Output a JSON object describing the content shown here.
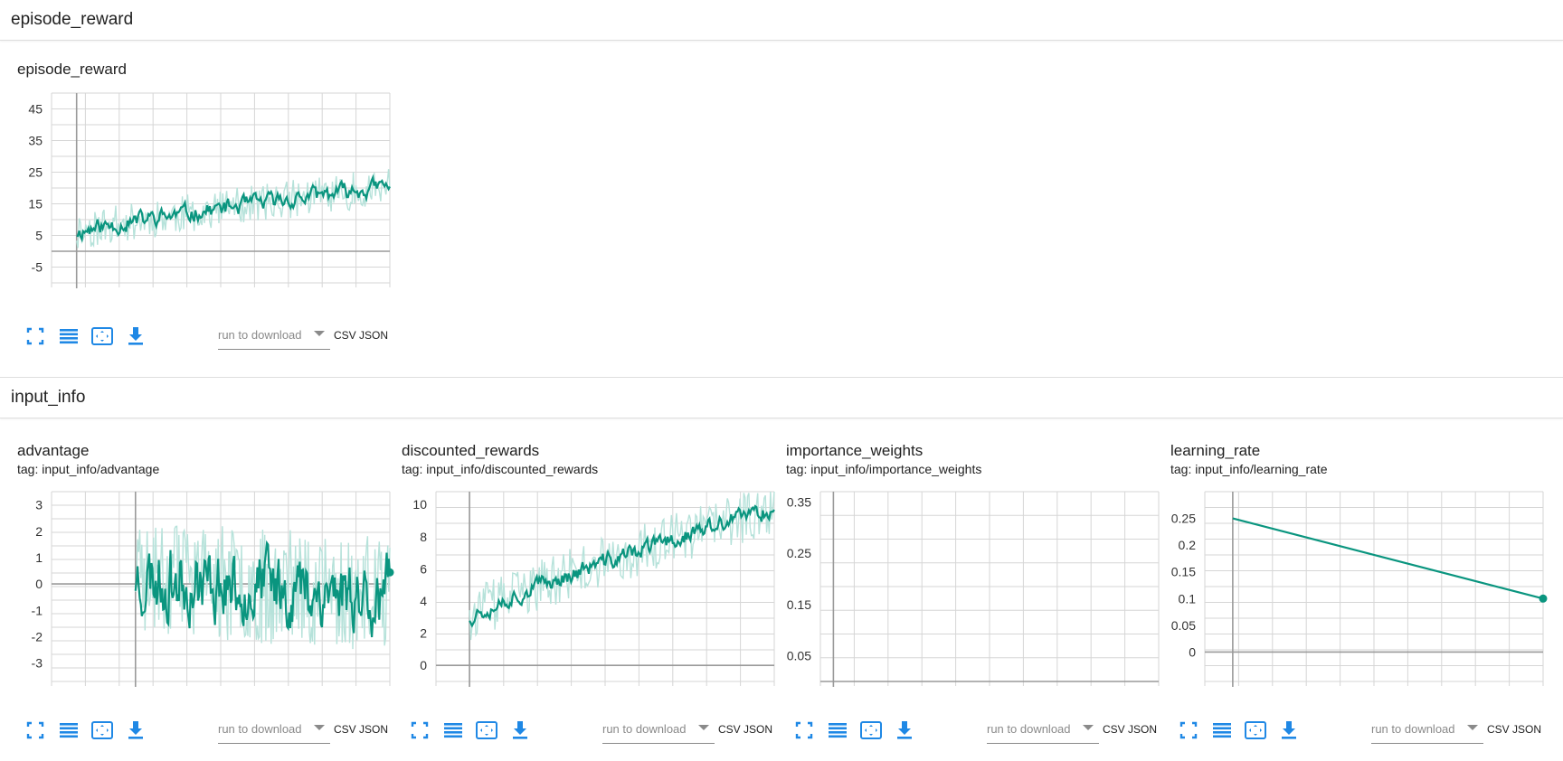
{
  "sections": {
    "episode_reward": "episode_reward",
    "input_info": "input_info"
  },
  "toolbar": {
    "run_placeholder": "run to download",
    "csv_label": "CSV",
    "json_label": "JSON"
  },
  "colors": {
    "series": "#0a957f",
    "series_light": "#b6e2da",
    "grid": "#d6d6d6",
    "axis": "#9a9a9a",
    "icon": "#1f88e5"
  },
  "icons": [
    "fullscreen-icon",
    "list-icon",
    "fit-domain-icon",
    "download-icon"
  ],
  "cards": [
    {
      "id": "episode_reward",
      "title": "episode_reward",
      "tag": ""
    },
    {
      "id": "advantage",
      "title": "advantage",
      "tag": "tag: input_info/advantage"
    },
    {
      "id": "discounted_rewards",
      "title": "discounted_rewards",
      "tag": "tag: input_info/discounted_rewards"
    },
    {
      "id": "importance_weights",
      "title": "importance_weights",
      "tag": "tag: input_info/importance_weights"
    },
    {
      "id": "learning_rate",
      "title": "learning_rate",
      "tag": "tag: input_info/learning_rate"
    }
  ],
  "chart_data": [
    {
      "type": "line",
      "id": "episode_reward",
      "title": "episode_reward",
      "xlabel": "",
      "ylabel": "",
      "yticks": [
        45,
        35,
        25,
        15,
        5,
        -5
      ],
      "ylim": [
        -10,
        50
      ],
      "xlim": [
        -0.08,
        1.0
      ],
      "grid": true,
      "series": [
        {
          "kind": "noisy",
          "x_start": 0,
          "x_end": 1,
          "smooth_start": 6,
          "smooth_end": 20.5,
          "noise": 2.2,
          "raw_spread": 6,
          "seed": 11
        }
      ]
    },
    {
      "type": "line",
      "id": "advantage",
      "title": "advantage",
      "xlabel": "",
      "ylabel": "",
      "yticks": [
        3,
        2,
        1,
        0,
        -1,
        -2,
        -3
      ],
      "ylim": [
        -3.7,
        3.5
      ],
      "xlim": [
        -0.33,
        1.0
      ],
      "grid": true,
      "series": [
        {
          "kind": "noisy",
          "x_start": 0,
          "x_end": 1,
          "smooth_start": 0.3,
          "smooth_end": -0.4,
          "noise": 1.1,
          "raw_spread": 2.2,
          "seed": 23,
          "end_dot": true
        }
      ]
    },
    {
      "type": "line",
      "id": "discounted_rewards",
      "title": "discounted_rewards",
      "xlabel": "",
      "ylabel": "",
      "yticks": [
        10,
        8,
        6,
        4,
        2,
        0
      ],
      "ylim": [
        -1,
        10.8
      ],
      "xlim": [
        -0.11,
        1.0
      ],
      "grid": true,
      "series": [
        {
          "kind": "noisy",
          "x_start": 0,
          "x_end": 1,
          "smooth_start": 3.0,
          "smooth_end": 9.8,
          "noise": 0.45,
          "raw_spread": 1.6,
          "seed": 37
        }
      ]
    },
    {
      "type": "line",
      "id": "importance_weights",
      "title": "importance_weights",
      "xlabel": "",
      "ylabel": "",
      "yticks": [
        0.35,
        0.25,
        0.15,
        0.05
      ],
      "ylim": [
        0,
        0.37
      ],
      "xlim": [
        -0.04,
        1.0
      ],
      "grid": true,
      "series": []
    },
    {
      "type": "line",
      "id": "learning_rate",
      "title": "learning_rate",
      "xlabel": "",
      "ylabel": "",
      "yticks": [
        0.25,
        0.2,
        0.15,
        0.1,
        0.05,
        0
      ],
      "ylim": [
        -0.055,
        0.3
      ],
      "xlim": [
        -0.09,
        1.0
      ],
      "grid": true,
      "series": [
        {
          "kind": "points",
          "x": [
            0,
            1
          ],
          "y": [
            0.25,
            0.1
          ],
          "end_dot": true
        }
      ]
    }
  ]
}
